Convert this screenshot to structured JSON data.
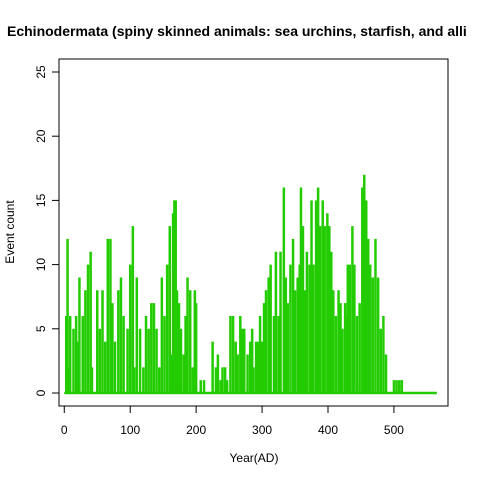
{
  "chart_data": {
    "type": "bar",
    "title": "Echinodermata (spiny skinned animals: sea urchins, starfish, and alli",
    "xlabel": "Year(AD)",
    "ylabel": "Event count",
    "xlim": [
      -8,
      582
    ],
    "ylim": [
      0,
      25
    ],
    "x_ticks": [
      0,
      100,
      200,
      300,
      400,
      500
    ],
    "y_ticks": [
      0,
      5,
      10,
      15,
      20,
      25
    ],
    "x_tick_labels": [
      "0",
      "100",
      "200",
      "300",
      "400",
      "500"
    ],
    "y_tick_labels": [
      "0",
      "5",
      "10",
      "15",
      "20",
      "25"
    ],
    "grid": false,
    "legend": "none",
    "colors": {
      "bars": "#22cc00",
      "axis": "#000000"
    },
    "bars": [
      {
        "x": 3,
        "y": 6
      },
      {
        "x": 5,
        "y": 12
      },
      {
        "x": 7,
        "y": 2
      },
      {
        "x": 9,
        "y": 6
      },
      {
        "x": 14,
        "y": 5
      },
      {
        "x": 18,
        "y": 6
      },
      {
        "x": 20,
        "y": 4
      },
      {
        "x": 23,
        "y": 9
      },
      {
        "x": 28,
        "y": 6
      },
      {
        "x": 32,
        "y": 8
      },
      {
        "x": 36,
        "y": 10
      },
      {
        "x": 40,
        "y": 11
      },
      {
        "x": 42,
        "y": 2
      },
      {
        "x": 50,
        "y": 8
      },
      {
        "x": 54,
        "y": 5
      },
      {
        "x": 58,
        "y": 8
      },
      {
        "x": 62,
        "y": 4
      },
      {
        "x": 66,
        "y": 12
      },
      {
        "x": 70,
        "y": 12
      },
      {
        "x": 73,
        "y": 7
      },
      {
        "x": 77,
        "y": 4
      },
      {
        "x": 82,
        "y": 8
      },
      {
        "x": 86,
        "y": 9
      },
      {
        "x": 90,
        "y": 6
      },
      {
        "x": 96,
        "y": 5
      },
      {
        "x": 100,
        "y": 10
      },
      {
        "x": 104,
        "y": 13
      },
      {
        "x": 106,
        "y": 2
      },
      {
        "x": 110,
        "y": 9
      },
      {
        "x": 115,
        "y": 5
      },
      {
        "x": 120,
        "y": 2
      },
      {
        "x": 124,
        "y": 6
      },
      {
        "x": 128,
        "y": 5
      },
      {
        "x": 132,
        "y": 7
      },
      {
        "x": 136,
        "y": 7
      },
      {
        "x": 140,
        "y": 5
      },
      {
        "x": 144,
        "y": 2
      },
      {
        "x": 148,
        "y": 9
      },
      {
        "x": 152,
        "y": 6
      },
      {
        "x": 156,
        "y": 10
      },
      {
        "x": 160,
        "y": 13
      },
      {
        "x": 163,
        "y": 3
      },
      {
        "x": 165,
        "y": 14
      },
      {
        "x": 167,
        "y": 15
      },
      {
        "x": 169,
        "y": 15
      },
      {
        "x": 171,
        "y": 8
      },
      {
        "x": 174,
        "y": 7
      },
      {
        "x": 177,
        "y": 5
      },
      {
        "x": 181,
        "y": 3
      },
      {
        "x": 184,
        "y": 6
      },
      {
        "x": 187,
        "y": 9
      },
      {
        "x": 191,
        "y": 8
      },
      {
        "x": 195,
        "y": 2
      },
      {
        "x": 198,
        "y": 8
      },
      {
        "x": 200,
        "y": 7
      },
      {
        "x": 207,
        "y": 1
      },
      {
        "x": 212,
        "y": 1
      },
      {
        "x": 225,
        "y": 4
      },
      {
        "x": 230,
        "y": 2
      },
      {
        "x": 233,
        "y": 3
      },
      {
        "x": 237,
        "y": 1
      },
      {
        "x": 240,
        "y": 2
      },
      {
        "x": 244,
        "y": 2
      },
      {
        "x": 247,
        "y": 1
      },
      {
        "x": 252,
        "y": 6
      },
      {
        "x": 256,
        "y": 6
      },
      {
        "x": 260,
        "y": 4
      },
      {
        "x": 263,
        "y": 3
      },
      {
        "x": 267,
        "y": 6
      },
      {
        "x": 270,
        "y": 5
      },
      {
        "x": 273,
        "y": 5
      },
      {
        "x": 278,
        "y": 3
      },
      {
        "x": 282,
        "y": 4
      },
      {
        "x": 285,
        "y": 5
      },
      {
        "x": 287,
        "y": 2
      },
      {
        "x": 291,
        "y": 4
      },
      {
        "x": 294,
        "y": 4
      },
      {
        "x": 297,
        "y": 6
      },
      {
        "x": 300,
        "y": 4
      },
      {
        "x": 303,
        "y": 7
      },
      {
        "x": 306,
        "y": 8
      },
      {
        "x": 310,
        "y": 9
      },
      {
        "x": 313,
        "y": 10
      },
      {
        "x": 318,
        "y": 6
      },
      {
        "x": 321,
        "y": 11
      },
      {
        "x": 325,
        "y": 6
      },
      {
        "x": 328,
        "y": 11
      },
      {
        "x": 333,
        "y": 16
      },
      {
        "x": 336,
        "y": 9
      },
      {
        "x": 339,
        "y": 7
      },
      {
        "x": 343,
        "y": 10
      },
      {
        "x": 347,
        "y": 12
      },
      {
        "x": 350,
        "y": 8
      },
      {
        "x": 354,
        "y": 9
      },
      {
        "x": 357,
        "y": 10
      },
      {
        "x": 359,
        "y": 16
      },
      {
        "x": 362,
        "y": 13
      },
      {
        "x": 365,
        "y": 8
      },
      {
        "x": 368,
        "y": 11
      },
      {
        "x": 372,
        "y": 10
      },
      {
        "x": 375,
        "y": 15
      },
      {
        "x": 378,
        "y": 10
      },
      {
        "x": 382,
        "y": 15
      },
      {
        "x": 385,
        "y": 16
      },
      {
        "x": 388,
        "y": 13
      },
      {
        "x": 392,
        "y": 15
      },
      {
        "x": 395,
        "y": 13
      },
      {
        "x": 399,
        "y": 14
      },
      {
        "x": 402,
        "y": 13
      },
      {
        "x": 405,
        "y": 11
      },
      {
        "x": 408,
        "y": 8
      },
      {
        "x": 412,
        "y": 6
      },
      {
        "x": 416,
        "y": 8
      },
      {
        "x": 419,
        "y": 7
      },
      {
        "x": 422,
        "y": 5
      },
      {
        "x": 426,
        "y": 7
      },
      {
        "x": 428,
        "y": 6
      },
      {
        "x": 430,
        "y": 10
      },
      {
        "x": 433,
        "y": 10
      },
      {
        "x": 437,
        "y": 13
      },
      {
        "x": 440,
        "y": 10
      },
      {
        "x": 444,
        "y": 6
      },
      {
        "x": 448,
        "y": 7
      },
      {
        "x": 452,
        "y": 16
      },
      {
        "x": 455,
        "y": 17
      },
      {
        "x": 458,
        "y": 15
      },
      {
        "x": 461,
        "y": 12
      },
      {
        "x": 464,
        "y": 10
      },
      {
        "x": 468,
        "y": 9
      },
      {
        "x": 472,
        "y": 12
      },
      {
        "x": 476,
        "y": 9
      },
      {
        "x": 480,
        "y": 5
      },
      {
        "x": 484,
        "y": 6
      },
      {
        "x": 488,
        "y": 3
      },
      {
        "x": 500,
        "y": 1
      },
      {
        "x": 504,
        "y": 1
      },
      {
        "x": 508,
        "y": 1
      },
      {
        "x": 512,
        "y": 1
      }
    ],
    "baseline_x_range": [
      0,
      565
    ]
  }
}
